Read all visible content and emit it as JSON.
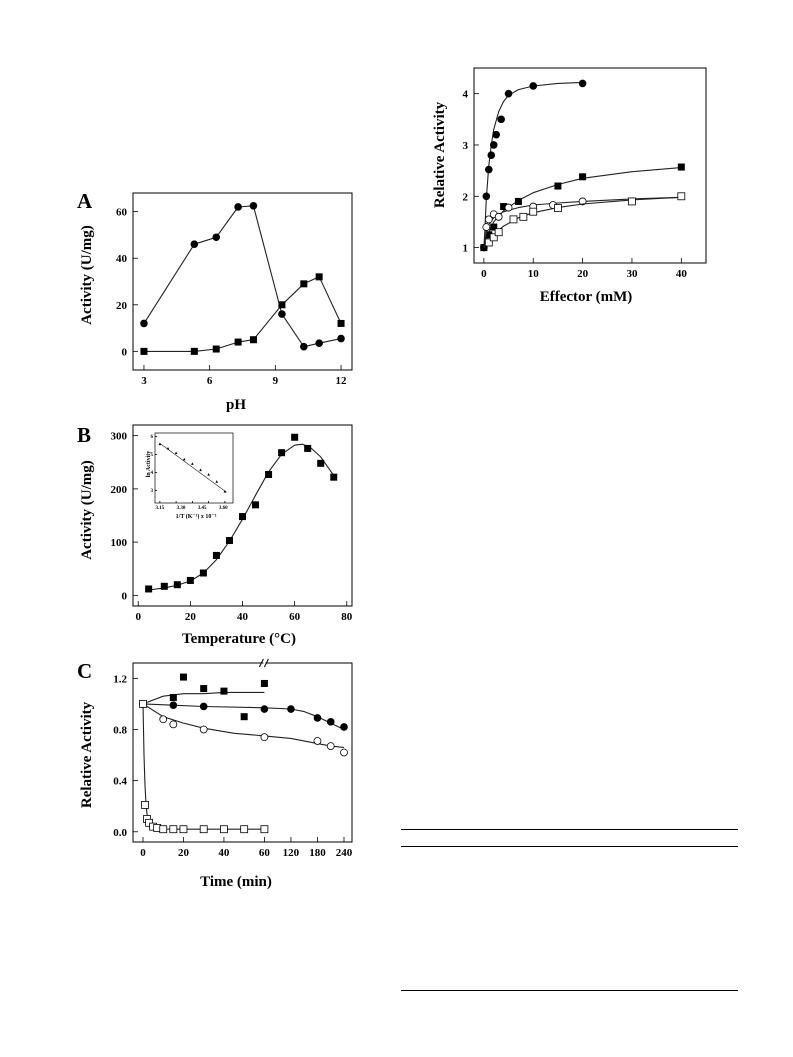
{
  "chart_data": [
    {
      "type": "scatter",
      "title": "",
      "panel_label": "",
      "xlabel": "Effector (mM)",
      "ylabel": "Relative Activity",
      "xlim": [
        -2,
        45
      ],
      "ylim": [
        0.7,
        4.5
      ],
      "xticks": [
        0,
        10,
        20,
        30,
        40
      ],
      "yticks": [
        1,
        2,
        3,
        4
      ],
      "series": [
        {
          "marker": "filled-circle",
          "x": [
            0,
            0.5,
            1,
            1.5,
            2,
            2.5,
            3.5,
            5,
            10,
            20
          ],
          "y": [
            1.0,
            2.0,
            2.52,
            2.8,
            3.0,
            3.2,
            3.5,
            4.0,
            4.15,
            4.2
          ],
          "fit": {
            "x": [
              0,
              0.2,
              0.5,
              1,
              1.5,
              2,
              3,
              4,
              5,
              7,
              10,
              15,
              20
            ],
            "y": [
              1.0,
              1.35,
              1.95,
              2.6,
              3.0,
              3.3,
              3.65,
              3.85,
              3.97,
              4.08,
              4.15,
              4.2,
              4.22
            ]
          }
        },
        {
          "marker": "filled-square",
          "x": [
            0,
            1,
            2,
            4,
            7,
            15,
            20,
            40
          ],
          "y": [
            1.0,
            1.25,
            1.4,
            1.8,
            1.9,
            2.2,
            2.38,
            2.57
          ],
          "fit": {
            "x": [
              0,
              1,
              2,
              4,
              7,
              10,
              15,
              20,
              30,
              40
            ],
            "y": [
              1.0,
              1.3,
              1.5,
              1.72,
              1.92,
              2.07,
              2.23,
              2.35,
              2.48,
              2.56
            ]
          }
        },
        {
          "marker": "open-circle",
          "x": [
            0.5,
            1,
            2,
            3,
            5,
            10,
            14,
            20
          ],
          "y": [
            1.4,
            1.55,
            1.65,
            1.6,
            1.78,
            1.8,
            1.83,
            1.9
          ],
          "fit": {
            "x": [
              0,
              0.5,
              1,
              2,
              4,
              7,
              10,
              15,
              20,
              30,
              40
            ],
            "y": [
              1.0,
              1.3,
              1.45,
              1.58,
              1.7,
              1.78,
              1.83,
              1.87,
              1.9,
              1.95,
              1.98
            ]
          }
        },
        {
          "marker": "open-square",
          "x": [
            1,
            2,
            3,
            6,
            8,
            10,
            15,
            30,
            40
          ],
          "y": [
            1.1,
            1.2,
            1.3,
            1.55,
            1.6,
            1.7,
            1.77,
            1.9,
            2.0
          ],
          "fit": {
            "x": [
              0,
              1,
              2,
              4,
              7,
              10,
              15,
              20,
              30,
              40
            ],
            "y": [
              1.0,
              1.12,
              1.25,
              1.42,
              1.58,
              1.68,
              1.78,
              1.85,
              1.93,
              1.98
            ]
          }
        }
      ]
    },
    {
      "type": "line",
      "title": "",
      "panel_label": "A",
      "xlabel": "pH",
      "ylabel": "Activity (U/mg)",
      "xlim": [
        2.5,
        12.5
      ],
      "ylim": [
        -8,
        68
      ],
      "xticks": [
        3,
        6,
        9,
        12
      ],
      "yticks": [
        0,
        20,
        40,
        60
      ],
      "series": [
        {
          "marker": "filled-circle",
          "x": [
            3,
            5.3,
            6.3,
            7.3,
            8,
            9.3,
            10.3,
            11,
            12
          ],
          "y": [
            12,
            46,
            49,
            62,
            62.5,
            16,
            2,
            3.5,
            5.5
          ]
        },
        {
          "marker": "filled-square",
          "x": [
            3,
            5.3,
            6.3,
            7.3,
            8,
            9.3,
            10.3,
            11,
            12
          ],
          "y": [
            0,
            0,
            1,
            4,
            5,
            20,
            29,
            32,
            12
          ]
        }
      ]
    },
    {
      "type": "scatter",
      "title": "",
      "panel_label": "B",
      "xlabel": "Temperature (°C)",
      "ylabel": "Activity (U/mg)",
      "xlim": [
        -2,
        82
      ],
      "ylim": [
        -20,
        320
      ],
      "xticks": [
        0,
        20,
        40,
        60,
        80
      ],
      "yticks": [
        0,
        100,
        200,
        300
      ],
      "series": [
        {
          "marker": "filled-square",
          "x": [
            4,
            10,
            15,
            20,
            25,
            30,
            35,
            40,
            45,
            50,
            55,
            60,
            65,
            70,
            75
          ],
          "y": [
            12,
            17,
            20,
            28,
            42,
            75,
            103,
            148,
            170,
            227,
            268,
            297,
            276,
            248,
            222
          ],
          "fit": {
            "x": [
              4,
              10,
              15,
              20,
              25,
              30,
              35,
              40,
              45,
              50,
              55,
              60,
              63,
              66,
              70,
              75
            ],
            "y": [
              10,
              14,
              19,
              27,
              42,
              67,
              102,
              143,
              188,
              232,
              265,
              282,
              284,
              278,
              260,
              225
            ]
          }
        }
      ]
    },
    {
      "type": "scatter",
      "title": "",
      "panel_label": "",
      "xlabel": "1/T (K⁻¹) x 10⁻³",
      "ylabel": "ln Activity",
      "xlim": [
        3.17,
        3.65
      ],
      "ylim": [
        2.3,
        6.2
      ],
      "xticks": [
        3.2,
        3.3,
        3.4,
        3.5,
        3.6
      ],
      "xtick_labels": [
        "3.15",
        "3.30",
        "3.45",
        "3.60"
      ],
      "xtick_label_positions": [
        3.2,
        3.33,
        3.46,
        3.59
      ],
      "yticks": [
        3,
        4,
        5,
        6
      ],
      "series": [
        {
          "marker": "filled-triangle",
          "x": [
            3.2,
            3.25,
            3.3,
            3.35,
            3.4,
            3.45,
            3.5,
            3.55,
            3.6
          ],
          "y": [
            5.6,
            5.35,
            5.1,
            4.75,
            4.5,
            4.15,
            3.9,
            3.5,
            2.95
          ],
          "fit": {
            "x": [
              3.2,
              3.61
            ],
            "y": [
              5.62,
              2.9
            ]
          }
        }
      ]
    },
    {
      "type": "scatter",
      "title": "",
      "panel_label": "C",
      "xlabel": "Time (min)",
      "ylabel": "Relative Activity",
      "xlim": [
        -5,
        248
      ],
      "ylim": [
        -0.08,
        1.32
      ],
      "xticks": [
        0,
        20,
        40,
        60,
        120,
        180,
        240
      ],
      "yticks": [
        0.0,
        0.4,
        0.8,
        1.2
      ],
      "ytick_labels": [
        "0.0",
        "0.4",
        "0.8",
        "1.2"
      ],
      "axis_break_x": 90,
      "series": [
        {
          "marker": "filled-square",
          "x": [
            0,
            15,
            20,
            30,
            40,
            50,
            60
          ],
          "y": [
            1.0,
            1.05,
            1.21,
            1.12,
            1.1,
            0.9,
            1.16
          ],
          "fit": {
            "x": [
              0,
              10,
              20,
              30,
              40,
              50,
              60
            ],
            "y": [
              1.0,
              1.06,
              1.08,
              1.08,
              1.09,
              1.09,
              1.09
            ]
          }
        },
        {
          "marker": "filled-circle",
          "x": [
            0,
            15,
            30,
            60,
            120,
            180,
            210,
            240
          ],
          "y": [
            1.0,
            0.99,
            0.98,
            0.96,
            0.96,
            0.89,
            0.86,
            0.82
          ],
          "fit": {
            "x": [
              0,
              15,
              30,
              60,
              120,
              150,
              180,
              210,
              240
            ],
            "y": [
              1.0,
              0.99,
              0.98,
              0.97,
              0.96,
              0.94,
              0.9,
              0.85,
              0.8
            ]
          }
        },
        {
          "marker": "open-circle",
          "x": [
            0,
            10,
            15,
            30,
            60,
            180,
            210,
            240
          ],
          "y": [
            1.0,
            0.88,
            0.84,
            0.8,
            0.74,
            0.71,
            0.67,
            0.62
          ],
          "fit": {
            "x": [
              0,
              10,
              20,
              30,
              45,
              60,
              120,
              180,
              210,
              240
            ],
            "y": [
              1.0,
              0.9,
              0.85,
              0.81,
              0.77,
              0.75,
              0.73,
              0.69,
              0.67,
              0.66
            ]
          }
        },
        {
          "marker": "open-square",
          "x": [
            0,
            1,
            2,
            3,
            5,
            7,
            10,
            15,
            20,
            30,
            40,
            50,
            60
          ],
          "y": [
            1.0,
            0.21,
            0.1,
            0.07,
            0.04,
            0.03,
            0.02,
            0.02,
            0.02,
            0.02,
            0.02,
            0.02,
            0.02
          ],
          "fit": {
            "x": [
              0,
              0.5,
              1,
              1.5,
              2,
              3,
              4,
              6,
              8,
              10,
              15,
              20,
              30,
              45,
              60
            ],
            "y": [
              1.0,
              0.6,
              0.36,
              0.22,
              0.14,
              0.07,
              0.045,
              0.03,
              0.025,
              0.022,
              0.02,
              0.02,
              0.02,
              0.02,
              0.02
            ]
          }
        }
      ]
    }
  ]
}
